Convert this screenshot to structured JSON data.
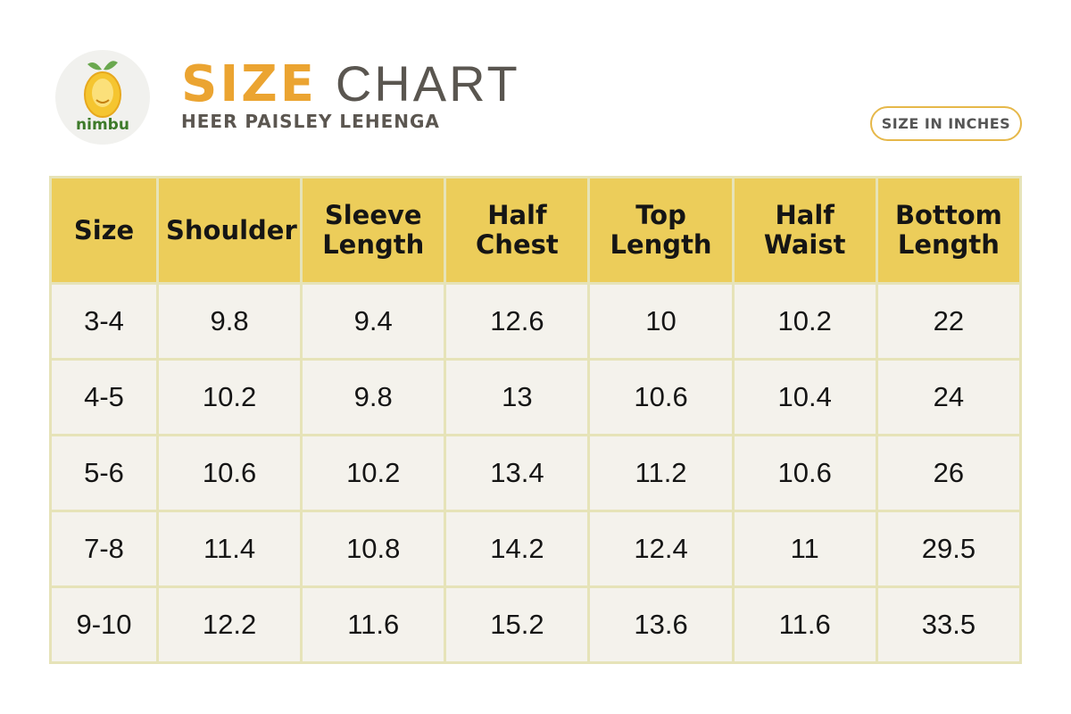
{
  "header": {
    "logo": "nimbu",
    "title_bold": "SIZE",
    "title_light": "CHART",
    "subtitle": "HEER PAISLEY LEHENGA",
    "badge": "SIZE IN INCHES"
  },
  "table": {
    "columns": [
      "Size",
      "Shoulder",
      "Sleeve Length",
      "Half Chest",
      "Top Length",
      "Half Waist",
      "Bottom Length"
    ],
    "rows": [
      [
        "3-4",
        9.8,
        9.4,
        12.6,
        10,
        10.2,
        22
      ],
      [
        "4-5",
        10.2,
        9.8,
        13,
        10.6,
        10.4,
        24
      ],
      [
        "5-6",
        10.6,
        10.2,
        13.4,
        11.2,
        10.6,
        26
      ],
      [
        "7-8",
        11.4,
        10.8,
        14.2,
        12.4,
        11,
        29.5
      ],
      [
        "9-10",
        12.2,
        11.6,
        15.2,
        13.6,
        11.6,
        33.5
      ]
    ]
  }
}
